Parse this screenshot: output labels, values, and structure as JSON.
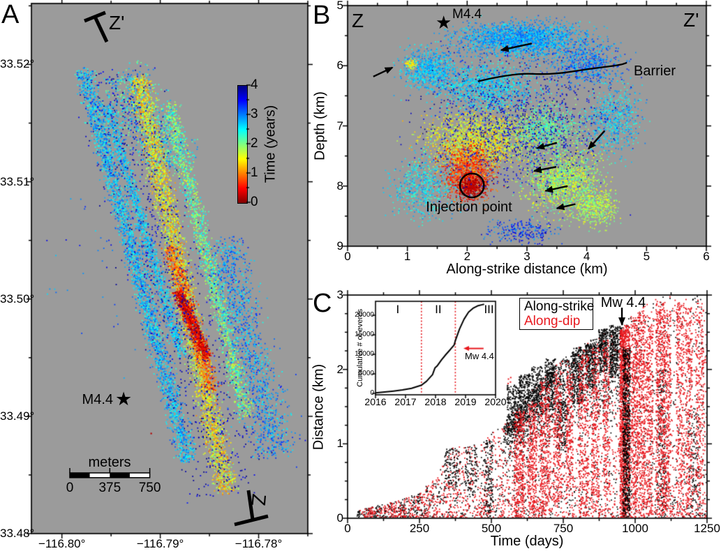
{
  "colors": {
    "panel_bg": "#9b9b9b",
    "accent_red": "#e8191f",
    "black": "#000000",
    "white": "#ffffff"
  },
  "glyphs": {
    "star": "★"
  },
  "panels": {
    "a": {
      "label": "A",
      "section_start": "Z'",
      "section_end": "Z",
      "star_label": "M4.4",
      "scalebar": {
        "title": "meters",
        "tick_labels": [
          "0",
          "375",
          "750"
        ]
      },
      "colorbar": {
        "label": "Time (years)",
        "tick_labels": [
          "4",
          "3",
          "2",
          "1",
          "0"
        ]
      },
      "x_tick_labels": [
        "−116.80°",
        "−116.79°",
        "−116.78°"
      ],
      "y_tick_labels": [
        "33.52°",
        "33.51°",
        "33.50°",
        "33.49°",
        "33.48°"
      ]
    },
    "b": {
      "label": "B",
      "section_left": "Z",
      "section_right": "Z'",
      "star_label": "M4.4",
      "barrier_label": "Barrier",
      "injection_label": "Injection point",
      "xlabel": "Along-strike distance (km)",
      "ylabel": "Depth (km)",
      "x_tick_labels": [
        "0",
        "1",
        "2",
        "3",
        "4",
        "5",
        "6"
      ],
      "y_tick_labels": [
        "5",
        "6",
        "7",
        "8",
        "9"
      ]
    },
    "c": {
      "label": "C",
      "xlabel": "Time (days)",
      "ylabel": "Distance (km)",
      "x_tick_labels": [
        "0",
        "250",
        "500",
        "750",
        "1000",
        "1250"
      ],
      "y_tick_labels": [
        "3",
        "2",
        "1",
        "0"
      ],
      "legend": [
        {
          "text": "Along-strike",
          "color": "#000000"
        },
        {
          "text": "Along-dip",
          "color": "#e8191f"
        }
      ],
      "mainshock_label": "Mw 4.4",
      "inset": {
        "ylabel": "Cumulative # of events",
        "x_tick_labels": [
          "2016",
          "2017",
          "2018",
          "2019",
          "2020"
        ],
        "y_tick_labels": [
          "0",
          "5000",
          "10000",
          "15000",
          "20000"
        ],
        "phase_labels": [
          "I",
          "II",
          "III"
        ],
        "mainshock_label": "Mw 4.4"
      }
    }
  },
  "chart_data": [
    {
      "id": "panel_a_epicenter_map",
      "type": "scatter",
      "points_colored_by": "time_years",
      "xlim": [
        -116.8031,
        -116.775
      ],
      "ylim": [
        33.48,
        33.5252
      ],
      "xticks": [
        -116.8,
        -116.79,
        -116.78
      ],
      "xminor_step": 0.005,
      "yticks": [
        33.52,
        33.51,
        33.5,
        33.49,
        33.48
      ],
      "yminor_step": 0.005,
      "colorbar": {
        "min": 0,
        "max": 4,
        "ticks": [
          0,
          1,
          2,
          3,
          4
        ],
        "minor_step": 0.5,
        "label": "Time (years)"
      },
      "mainshock": {
        "lon": -116.7936,
        "lat": 33.4914,
        "label": "M4.4"
      },
      "scalebar": {
        "units": "meters",
        "ticks_m": [
          0,
          375,
          750
        ]
      },
      "seed": 42,
      "bands": [
        {
          "name": "west-cyan",
          "p0": [
            -116.7979,
            33.5196
          ],
          "p1": [
            -116.7872,
            33.4863
          ],
          "w": 0.0009,
          "n": 2600,
          "t": [
            2.3,
            3.2
          ]
        },
        {
          "name": "west-inner",
          "p0": [
            -116.7955,
            33.5166
          ],
          "p1": [
            -116.7879,
            33.4952
          ],
          "w": 0.0006,
          "n": 1100,
          "t": [
            2.4,
            3.0
          ]
        },
        {
          "name": "north-mix",
          "p0": [
            -116.7945,
            33.5191
          ],
          "p1": [
            -116.7885,
            33.5115
          ],
          "w": 0.0028,
          "n": 800,
          "t": [
            1.9,
            3.1
          ]
        },
        {
          "name": "east-green",
          "p0": [
            -116.7892,
            33.5167
          ],
          "p1": [
            -116.7813,
            33.4901
          ],
          "w": 0.0009,
          "n": 1600,
          "t": [
            1.6,
            2.6
          ]
        },
        {
          "name": "east-cyan",
          "p0": [
            -116.7837,
            33.505
          ],
          "p1": [
            -116.7782,
            33.4868
          ],
          "w": 0.0021,
          "n": 1300,
          "t": [
            2.4,
            3.4
          ]
        },
        {
          "name": "center-yellow",
          "p0": [
            -116.7923,
            33.5189
          ],
          "p1": [
            -116.7833,
            33.4837
          ],
          "w": 0.0011,
          "n": 3600,
          "t": [
            0.9,
            2.1
          ]
        },
        {
          "name": "orange-halo",
          "p0": [
            -116.7891,
            33.5046
          ],
          "p1": [
            -116.7847,
            33.4923
          ],
          "w": 0.0008,
          "n": 800,
          "t": [
            0.5,
            1.2
          ]
        },
        {
          "name": "red-core",
          "p0": [
            -116.7883,
            33.5007
          ],
          "p1": [
            -116.7853,
            33.4951
          ],
          "w": 0.00055,
          "n": 900,
          "t": [
            0.0,
            0.8
          ]
        },
        {
          "name": "stray",
          "p0": [
            -116.7991,
            33.5077
          ],
          "p1": [
            -116.7765,
            33.4874
          ],
          "w": 0.006,
          "n": 130,
          "t": [
            2.6,
            3.6
          ]
        },
        {
          "name": "late-sprinkle",
          "p0": [
            -116.7952,
            33.5193
          ],
          "p1": [
            -116.7828,
            33.4839
          ],
          "w": 0.0038,
          "n": 1000,
          "t": [
            3.4,
            4.0
          ]
        }
      ],
      "outliers": [
        {
          "lon": -116.791,
          "lat": 33.4886,
          "t": 0.2
        }
      ]
    },
    {
      "id": "panel_b_depth_section",
      "type": "scatter",
      "points_colored_by": "time_years",
      "xlim": [
        0,
        6
      ],
      "ylim": [
        9,
        5
      ],
      "xticks": [
        0,
        1,
        2,
        3,
        4,
        5,
        6
      ],
      "yticks": [
        5,
        6,
        7,
        8,
        9
      ],
      "minor_step": 0.5,
      "mainshock": {
        "x_km": 1.62,
        "depth_km": 5.29,
        "label": "M4.4"
      },
      "injection_point": {
        "x_km": 2.08,
        "depth_km": 7.99,
        "radius_km": 0.2
      },
      "barrier_curve": [
        [
          2.18,
          6.26
        ],
        [
          2.77,
          6.12
        ],
        [
          3.41,
          6.15
        ],
        [
          4.05,
          6.05
        ],
        [
          4.55,
          5.99
        ],
        [
          4.67,
          5.95
        ]
      ],
      "arrows": [
        [
          3.08,
          5.63,
          2.57,
          5.74
        ],
        [
          0.43,
          6.18,
          0.75,
          6.03
        ],
        [
          4.3,
          7.08,
          4.03,
          7.38
        ],
        [
          3.5,
          7.28,
          3.17,
          7.37
        ],
        [
          3.49,
          7.68,
          3.12,
          7.75
        ],
        [
          3.68,
          8.0,
          3.31,
          8.08
        ],
        [
          3.81,
          8.3,
          3.5,
          8.37
        ]
      ],
      "seed": 7,
      "clusters": [
        [
          2.9,
          5.55,
          1.05,
          0.28,
          2200,
          2.5,
          3.2
        ],
        [
          1.35,
          6.05,
          0.45,
          0.35,
          800,
          2.4,
          3.1
        ],
        [
          2.3,
          6.35,
          0.8,
          0.4,
          1100,
          2.3,
          3.0
        ],
        [
          4.0,
          5.95,
          0.55,
          0.4,
          650,
          2.6,
          3.4
        ],
        [
          4.45,
          6.9,
          0.45,
          0.55,
          600,
          2.3,
          3.1
        ],
        [
          3.3,
          7.05,
          0.6,
          0.4,
          800,
          1.8,
          2.5
        ],
        [
          2.15,
          7.25,
          0.85,
          0.45,
          1900,
          1.1,
          2.0
        ],
        [
          2.0,
          7.75,
          0.45,
          0.45,
          1100,
          0.4,
          1.1
        ],
        [
          2.05,
          8.0,
          0.22,
          0.2,
          420,
          0.0,
          0.4
        ],
        [
          3.6,
          7.9,
          0.65,
          0.55,
          1400,
          1.4,
          2.3
        ],
        [
          4.15,
          8.35,
          0.35,
          0.3,
          450,
          1.5,
          2.2
        ],
        [
          1.25,
          8.0,
          0.5,
          0.5,
          600,
          2.2,
          3.0
        ],
        [
          2.9,
          8.75,
          0.6,
          0.2,
          260,
          2.8,
          3.8
        ],
        [
          1.05,
          5.97,
          0.1,
          0.07,
          70,
          1.2,
          1.8
        ],
        [
          2.8,
          7.0,
          1.5,
          1.1,
          1200,
          3.3,
          4.0
        ]
      ]
    },
    {
      "id": "panel_c_migration",
      "type": "scatter",
      "xlim": [
        0,
        1250
      ],
      "ylim": [
        0,
        3
      ],
      "xticks": [
        0,
        250,
        500,
        750,
        1000,
        1250
      ],
      "xminor_step": 125,
      "yticks": [
        3,
        2,
        1,
        0
      ],
      "yminor_step": 0.25,
      "series": [
        {
          "name": "Along-strike",
          "color": "#000000"
        },
        {
          "name": "Along-dip",
          "color": "#e8191f"
        }
      ],
      "mainshock": {
        "t_days": 954,
        "arrow_d_from": 2.83,
        "arrow_d_to": 2.6,
        "label": "Mw 4.4"
      },
      "front_envelope": [
        [
          0,
          0
        ],
        [
          40,
          0.12
        ],
        [
          150,
          0.22
        ],
        [
          250,
          0.35
        ],
        [
          310,
          0.6
        ],
        [
          360,
          0.95
        ],
        [
          430,
          1.0
        ],
        [
          480,
          1.1
        ],
        [
          540,
          1.3
        ],
        [
          600,
          1.55
        ],
        [
          650,
          1.8
        ],
        [
          700,
          2.0
        ],
        [
          750,
          2.15
        ],
        [
          800,
          2.3
        ],
        [
          850,
          2.42
        ],
        [
          900,
          2.52
        ],
        [
          950,
          2.6
        ],
        [
          1000,
          2.8
        ],
        [
          1060,
          2.95
        ],
        [
          1100,
          3.0
        ],
        [
          1250,
          3.0
        ]
      ],
      "seed": 11,
      "along_dip": {
        "base_n": 2400,
        "bursts": [
          [
            595,
            18,
            0,
            1.45,
            330
          ],
          [
            640,
            15,
            0,
            1.6,
            280
          ],
          [
            685,
            18,
            0,
            1.85,
            330
          ],
          [
            728,
            14,
            0.2,
            1.95,
            240
          ],
          [
            770,
            12,
            0.4,
            2.0,
            200
          ],
          [
            818,
            18,
            0,
            2.2,
            330
          ],
          [
            860,
            14,
            0,
            2.3,
            280
          ],
          [
            898,
            12,
            0.3,
            2.4,
            230
          ],
          [
            955,
            10,
            0,
            2.55,
            850
          ],
          [
            972,
            8,
            0,
            2.6,
            420
          ],
          [
            995,
            12,
            0,
            2.7,
            380
          ],
          [
            1020,
            14,
            0,
            2.8,
            420
          ],
          [
            1048,
            12,
            0,
            2.6,
            300
          ],
          [
            1085,
            15,
            0,
            2.9,
            480
          ],
          [
            1110,
            12,
            0,
            2.8,
            330
          ],
          [
            1155,
            14,
            0,
            2.9,
            300
          ],
          [
            1185,
            12,
            0,
            2.85,
            280
          ],
          [
            1222,
            14,
            0,
            2.9,
            260
          ]
        ],
        "outliers": [
          [
            557,
            1.88
          ],
          [
            565,
            1.9
          ],
          [
            556,
            1.82
          ],
          [
            564,
            1.84
          ]
        ]
      },
      "along_strike": {
        "fill_regions": [
          [
            30,
            540,
            600
          ],
          [
            540,
            960,
            550
          ],
          [
            960,
            1250,
            520
          ]
        ],
        "front_regions": [
          [
            540,
            960,
            1400
          ]
        ],
        "bursts": [
          [
            360,
            25,
            0.4,
            0.95,
            110
          ],
          [
            428,
            20,
            0.3,
            0.95,
            90
          ],
          [
            488,
            15,
            0,
            1.05,
            140
          ],
          [
            578,
            25,
            1.15,
            1.8,
            260
          ],
          [
            614,
            20,
            1.3,
            1.95,
            230
          ],
          [
            658,
            20,
            1.35,
            2.05,
            210
          ],
          [
            703,
            18,
            1.45,
            2.15,
            240
          ],
          [
            742,
            15,
            0.9,
            1.6,
            140
          ],
          [
            798,
            20,
            1.55,
            2.3,
            260
          ],
          [
            843,
            18,
            1.75,
            2.35,
            240
          ],
          [
            886,
            15,
            1.95,
            2.55,
            210
          ],
          [
            924,
            15,
            1.9,
            2.6,
            240
          ],
          [
            1090,
            15,
            0,
            2.0,
            180
          ],
          [
            1200,
            20,
            0,
            1.5,
            110
          ]
        ],
        "top_burst": [
          968,
          13,
          0,
          2.3,
          650
        ]
      },
      "inset": {
        "type": "line",
        "xlim": [
          2016,
          2020
        ],
        "ylim": [
          0,
          23500
        ],
        "xticks": [
          2016,
          2017,
          2018,
          2019,
          2020
        ],
        "yticks": [
          0,
          5000,
          10000,
          15000,
          20000
        ],
        "ylabel": "Cumulative # of events",
        "phase_lines": [
          2017.53,
          2018.66
        ],
        "phase_label_x": [
          2016.74,
          2018.09,
          2019.78
        ],
        "curve": [
          [
            2016.0,
            150
          ],
          [
            2016.3,
            350
          ],
          [
            2016.6,
            600
          ],
          [
            2016.9,
            900
          ],
          [
            2017.2,
            1300
          ],
          [
            2017.53,
            2100
          ],
          [
            2017.7,
            3100
          ],
          [
            2017.9,
            4800
          ],
          [
            2017.98,
            6500
          ],
          [
            2018.05,
            7000
          ],
          [
            2018.2,
            8600
          ],
          [
            2018.35,
            10000
          ],
          [
            2018.5,
            11300
          ],
          [
            2018.62,
            12400
          ],
          [
            2018.66,
            13500
          ],
          [
            2018.8,
            16500
          ],
          [
            2018.95,
            19000
          ],
          [
            2019.1,
            20800
          ],
          [
            2019.25,
            21800
          ],
          [
            2019.4,
            22400
          ],
          [
            2019.55,
            22700
          ],
          [
            2019.62,
            22800
          ]
        ],
        "mainshock": {
          "arrow_x_from": 2019.6,
          "arrow_x_to": 2018.93,
          "y": 11500,
          "label": "Mw 4.4"
        }
      }
    }
  ]
}
